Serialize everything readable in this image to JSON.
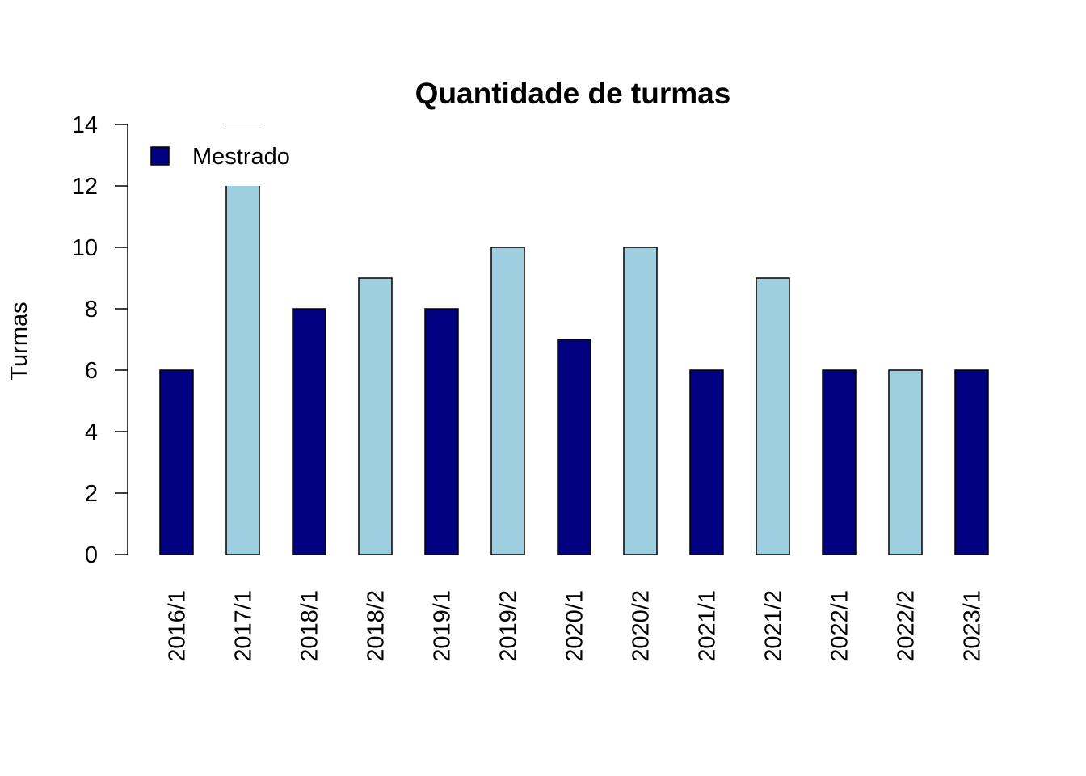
{
  "chart_data": {
    "type": "bar",
    "title": "Quantidade de turmas",
    "xlabel": "",
    "ylabel": "Turmas",
    "ylim": [
      0,
      14
    ],
    "yticks": [
      0,
      2,
      4,
      6,
      8,
      10,
      12,
      14
    ],
    "grid": false,
    "legend": {
      "placement": "top-left",
      "entries": [
        {
          "label": "Mestrado",
          "color": "#000080"
        }
      ]
    },
    "categories": [
      "2016/1",
      "2017/1",
      "2018/1",
      "2018/2",
      "2019/1",
      "2019/2",
      "2020/1",
      "2020/2",
      "2021/1",
      "2021/2",
      "2022/1",
      "2022/2",
      "2023/1"
    ],
    "values": [
      6,
      14,
      8,
      9,
      8,
      10,
      7,
      10,
      6,
      9,
      6,
      6,
      6
    ],
    "bar_colors": [
      "#000080",
      "#9ECFE0",
      "#000080",
      "#9ECFE0",
      "#000080",
      "#9ECFE0",
      "#000080",
      "#9ECFE0",
      "#000080",
      "#9ECFE0",
      "#000080",
      "#9ECFE0",
      "#000080"
    ]
  }
}
